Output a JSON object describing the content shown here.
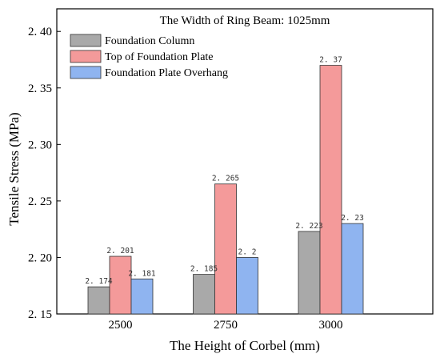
{
  "chart_data": {
    "type": "bar",
    "title": "The Width of Ring Beam: 1025mm",
    "xlabel": "The Height of Corbel (mm)",
    "ylabel": "Tensile Stress (MPa)",
    "categories": [
      "2500",
      "2750",
      "3000"
    ],
    "ylim": [
      2.15,
      2.42
    ],
    "yticks": [
      "2. 15",
      "2. 20",
      "2. 25",
      "2. 30",
      "2. 35",
      "2. 40"
    ],
    "ytick_values": [
      2.15,
      2.2,
      2.25,
      2.3,
      2.35,
      2.4
    ],
    "legend_position": "top-left",
    "grid": false,
    "series": [
      {
        "name": "Foundation Column",
        "color": "#a9a9a9",
        "values": [
          2.174,
          2.185,
          2.223
        ],
        "labels": [
          "2. 174",
          "2. 185",
          "2. 223"
        ]
      },
      {
        "name": "Top of Foundation Plate",
        "color": "#f49a9a",
        "values": [
          2.201,
          2.265,
          2.37
        ],
        "labels": [
          "2. 201",
          "2. 265",
          "2. 37"
        ]
      },
      {
        "name": "Foundation Plate Overhang",
        "color": "#8fb4f0",
        "values": [
          2.181,
          2.2,
          2.23
        ],
        "labels": [
          "2. 181",
          "2. 2",
          "2. 23"
        ]
      }
    ]
  }
}
